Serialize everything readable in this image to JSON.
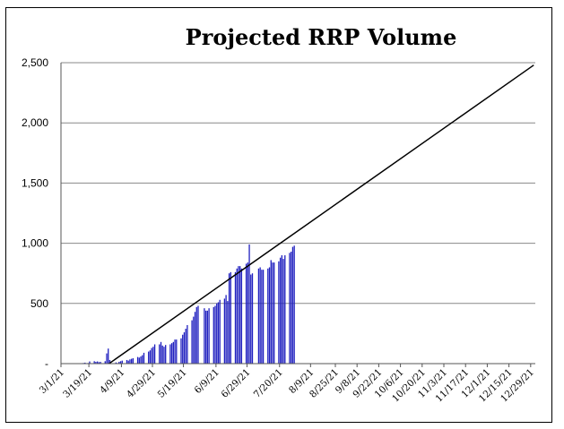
{
  "chart_data": {
    "type": "bar",
    "title": "Projected RRP Volume",
    "xlabel": "",
    "ylabel": "",
    "ylim": [
      0,
      2500
    ],
    "y_ticks": [
      {
        "value": 0,
        "label": "-"
      },
      {
        "value": 500,
        "label": "500"
      },
      {
        "value": 1000,
        "label": "1,000"
      },
      {
        "value": 1500,
        "label": "1,500"
      },
      {
        "value": 2000,
        "label": "2,000"
      },
      {
        "value": 2500,
        "label": "2,500"
      }
    ],
    "x_ticks": [
      "3/1/21",
      "3/19/21",
      "4/9/21",
      "4/29/21",
      "5/19/21",
      "6/9/21",
      "6/29/21",
      "7/20/21",
      "8/9/21",
      "8/25/21",
      "9/8/21",
      "9/22/21",
      "10/6/21",
      "10/20/21",
      "11/3/21",
      "11/17/21",
      "12/1/21",
      "12/15/21",
      "12/29/21"
    ],
    "grid": "horizontal",
    "legend": "none",
    "bar_color": "#1f1fbf",
    "trend_line": {
      "start": {
        "x": "4/1/21",
        "y": 0
      },
      "end": {
        "x": "12/31/21",
        "y": 2480
      }
    },
    "series": [
      {
        "values": [
          {
            "x": "3/15/21",
            "y": 5
          },
          {
            "x": "3/16/21",
            "y": 8
          },
          {
            "x": "3/17/21",
            "y": 3
          },
          {
            "x": "3/18/21",
            "y": 5
          },
          {
            "x": "3/19/21",
            "y": 18
          },
          {
            "x": "3/22/21",
            "y": 20
          },
          {
            "x": "3/23/21",
            "y": 15
          },
          {
            "x": "3/24/21",
            "y": 18
          },
          {
            "x": "3/25/21",
            "y": 12
          },
          {
            "x": "3/26/21",
            "y": 15
          },
          {
            "x": "3/29/21",
            "y": 20
          },
          {
            "x": "3/30/21",
            "y": 85
          },
          {
            "x": "3/31/21",
            "y": 125
          },
          {
            "x": "4/1/21",
            "y": 30
          },
          {
            "x": "4/5/21",
            "y": 10
          },
          {
            "x": "4/6/21",
            "y": 5
          },
          {
            "x": "4/7/21",
            "y": 15
          },
          {
            "x": "4/8/21",
            "y": 20
          },
          {
            "x": "4/9/21",
            "y": 25
          },
          {
            "x": "4/12/21",
            "y": 30
          },
          {
            "x": "4/13/21",
            "y": 25
          },
          {
            "x": "4/14/21",
            "y": 35
          },
          {
            "x": "4/15/21",
            "y": 40
          },
          {
            "x": "4/16/21",
            "y": 45
          },
          {
            "x": "4/19/21",
            "y": 55
          },
          {
            "x": "4/20/21",
            "y": 50
          },
          {
            "x": "4/21/21",
            "y": 60
          },
          {
            "x": "4/22/21",
            "y": 70
          },
          {
            "x": "4/23/21",
            "y": 90
          },
          {
            "x": "4/26/21",
            "y": 100
          },
          {
            "x": "4/27/21",
            "y": 110
          },
          {
            "x": "4/28/21",
            "y": 130
          },
          {
            "x": "4/29/21",
            "y": 140
          },
          {
            "x": "4/30/21",
            "y": 160
          },
          {
            "x": "5/3/21",
            "y": 160
          },
          {
            "x": "5/4/21",
            "y": 180
          },
          {
            "x": "5/5/21",
            "y": 150
          },
          {
            "x": "5/6/21",
            "y": 140
          },
          {
            "x": "5/7/21",
            "y": 155
          },
          {
            "x": "5/10/21",
            "y": 160
          },
          {
            "x": "5/11/21",
            "y": 170
          },
          {
            "x": "5/12/21",
            "y": 180
          },
          {
            "x": "5/13/21",
            "y": 200
          },
          {
            "x": "5/14/21",
            "y": 200
          },
          {
            "x": "5/17/21",
            "y": 210
          },
          {
            "x": "5/18/21",
            "y": 240
          },
          {
            "x": "5/19/21",
            "y": 260
          },
          {
            "x": "5/20/21",
            "y": 290
          },
          {
            "x": "5/21/21",
            "y": 320
          },
          {
            "x": "5/24/21",
            "y": 360
          },
          {
            "x": "5/25/21",
            "y": 390
          },
          {
            "x": "5/26/21",
            "y": 430
          },
          {
            "x": "5/27/21",
            "y": 470
          },
          {
            "x": "5/28/21",
            "y": 480
          },
          {
            "x": "6/1/21",
            "y": 460
          },
          {
            "x": "6/2/21",
            "y": 440
          },
          {
            "x": "6/3/21",
            "y": 440
          },
          {
            "x": "6/4/21",
            "y": 460
          },
          {
            "x": "6/7/21",
            "y": 470
          },
          {
            "x": "6/8/21",
            "y": 480
          },
          {
            "x": "6/9/21",
            "y": 500
          },
          {
            "x": "6/10/21",
            "y": 510
          },
          {
            "x": "6/11/21",
            "y": 530
          },
          {
            "x": "6/14/21",
            "y": 540
          },
          {
            "x": "6/15/21",
            "y": 570
          },
          {
            "x": "6/16/21",
            "y": 520
          },
          {
            "x": "6/17/21",
            "y": 750
          },
          {
            "x": "6/18/21",
            "y": 760
          },
          {
            "x": "6/21/21",
            "y": 760
          },
          {
            "x": "6/22/21",
            "y": 790
          },
          {
            "x": "6/23/21",
            "y": 810
          },
          {
            "x": "6/24/21",
            "y": 810
          },
          {
            "x": "6/25/21",
            "y": 790
          },
          {
            "x": "6/28/21",
            "y": 830
          },
          {
            "x": "6/29/21",
            "y": 840
          },
          {
            "x": "6/30/21",
            "y": 990
          },
          {
            "x": "7/1/21",
            "y": 740
          },
          {
            "x": "7/2/21",
            "y": 750
          },
          {
            "x": "7/6/21",
            "y": 790
          },
          {
            "x": "7/7/21",
            "y": 800
          },
          {
            "x": "7/8/21",
            "y": 780
          },
          {
            "x": "7/9/21",
            "y": 780
          },
          {
            "x": "7/12/21",
            "y": 790
          },
          {
            "x": "7/13/21",
            "y": 800
          },
          {
            "x": "7/14/21",
            "y": 860
          },
          {
            "x": "7/15/21",
            "y": 840
          },
          {
            "x": "7/16/21",
            "y": 840
          },
          {
            "x": "7/19/21",
            "y": 850
          },
          {
            "x": "7/20/21",
            "y": 880
          },
          {
            "x": "7/21/21",
            "y": 900
          },
          {
            "x": "7/22/21",
            "y": 870
          },
          {
            "x": "7/23/21",
            "y": 900
          },
          {
            "x": "7/26/21",
            "y": 920
          },
          {
            "x": "7/27/21",
            "y": 930
          },
          {
            "x": "7/28/21",
            "y": 970
          },
          {
            "x": "7/29/21",
            "y": 980
          }
        ]
      }
    ]
  }
}
